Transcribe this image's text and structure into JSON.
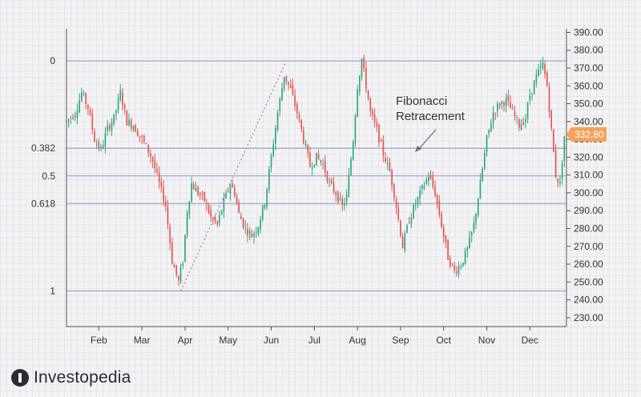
{
  "chart_data": {
    "type": "candlestick",
    "y_axis": {
      "position": "right",
      "range": [
        225,
        392
      ],
      "ticks": [
        230,
        240,
        250,
        260,
        270,
        280,
        290,
        300,
        310,
        320,
        330,
        340,
        350,
        360,
        370,
        380,
        390
      ],
      "tick_labels": [
        "230.00",
        "240.00",
        "250.00",
        "260.00",
        "270.00",
        "280.00",
        "290.00",
        "300.00",
        "310.00",
        "320.00",
        "330.00",
        "340.00",
        "350.00",
        "360.00",
        "370.00",
        "380.00",
        "390.00"
      ]
    },
    "x_axis": {
      "months": [
        "Feb",
        "Mar",
        "Apr",
        "May",
        "Jun",
        "Jul",
        "Aug",
        "Sep",
        "Oct",
        "Nov",
        "Dec"
      ],
      "range": [
        0,
        232
      ],
      "month_positions": [
        15,
        35,
        55,
        75,
        95,
        115,
        135,
        155,
        175,
        195,
        215
      ]
    },
    "fibonacci_levels": [
      {
        "label": "0",
        "value": 374
      },
      {
        "label": "0.382",
        "value": 325
      },
      {
        "label": "0.5",
        "value": 309.5
      },
      {
        "label": "0.618",
        "value": 294
      },
      {
        "label": "1",
        "value": 245
      }
    ],
    "retracement_line": {
      "from": [
        53,
        245
      ],
      "to": [
        102,
        374
      ]
    },
    "annotation": {
      "line1": "Fibonacci",
      "line2": "Retracement"
    },
    "last_price": {
      "label": "332.80",
      "value": 332.8
    },
    "colors": {
      "up": "#2fa87b",
      "down": "#e2574c",
      "fib_line": "#8e92c0",
      "price_badge": "#f4a25b"
    }
  },
  "brand": {
    "name": "Investopedia"
  }
}
